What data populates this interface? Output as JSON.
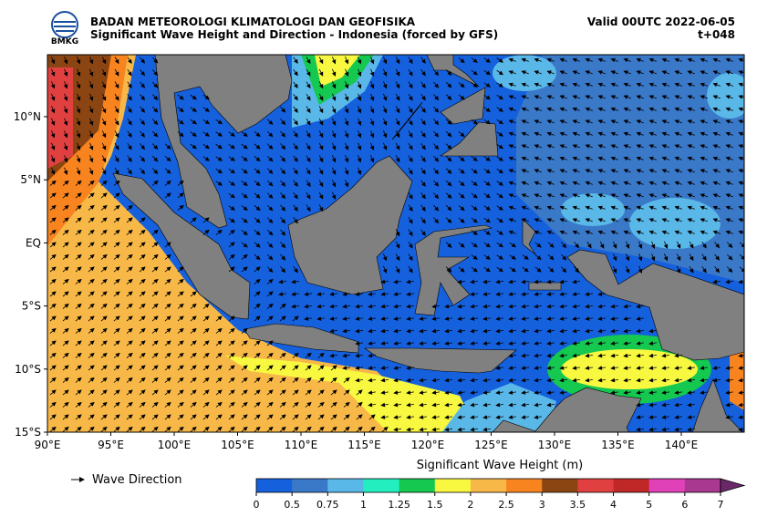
{
  "header": {
    "logo": "BMKG",
    "title": "BADAN METEOROLOGI KLIMATOLOGI DAN GEOFISIKA",
    "subtitle": "Significant Wave Height and Direction - Indonesia (forced by GFS)",
    "valid": "Valid 00UTC 2022-06-05",
    "step": "t+048"
  },
  "map": {
    "lat_labels": [
      "10°N",
      "5°N",
      "EQ",
      "5°S",
      "10°S",
      "15°S"
    ],
    "lon_labels": [
      "90°E",
      "95°E",
      "100°E",
      "105°E",
      "110°E",
      "115°E",
      "120°E",
      "125°E",
      "130°E",
      "135°E",
      "140°E"
    ]
  },
  "legend": {
    "label": "Wave Direction"
  },
  "colorbar": {
    "title": "Significant Wave Height (m)",
    "ticks": [
      0,
      0.5,
      0.75,
      1,
      1.25,
      1.5,
      2,
      2.5,
      3,
      3.5,
      4,
      5,
      6,
      7
    ],
    "colors": [
      "#1560dc",
      "#3a78c8",
      "#5ab8e8",
      "#22eec0",
      "#14c850",
      "#f8f840",
      "#f8b848",
      "#f88420",
      "#8b4513",
      "#e04040",
      "#c02828",
      "#e040b8",
      "#a83890"
    ],
    "extend_color": "#6a2868"
  }
}
